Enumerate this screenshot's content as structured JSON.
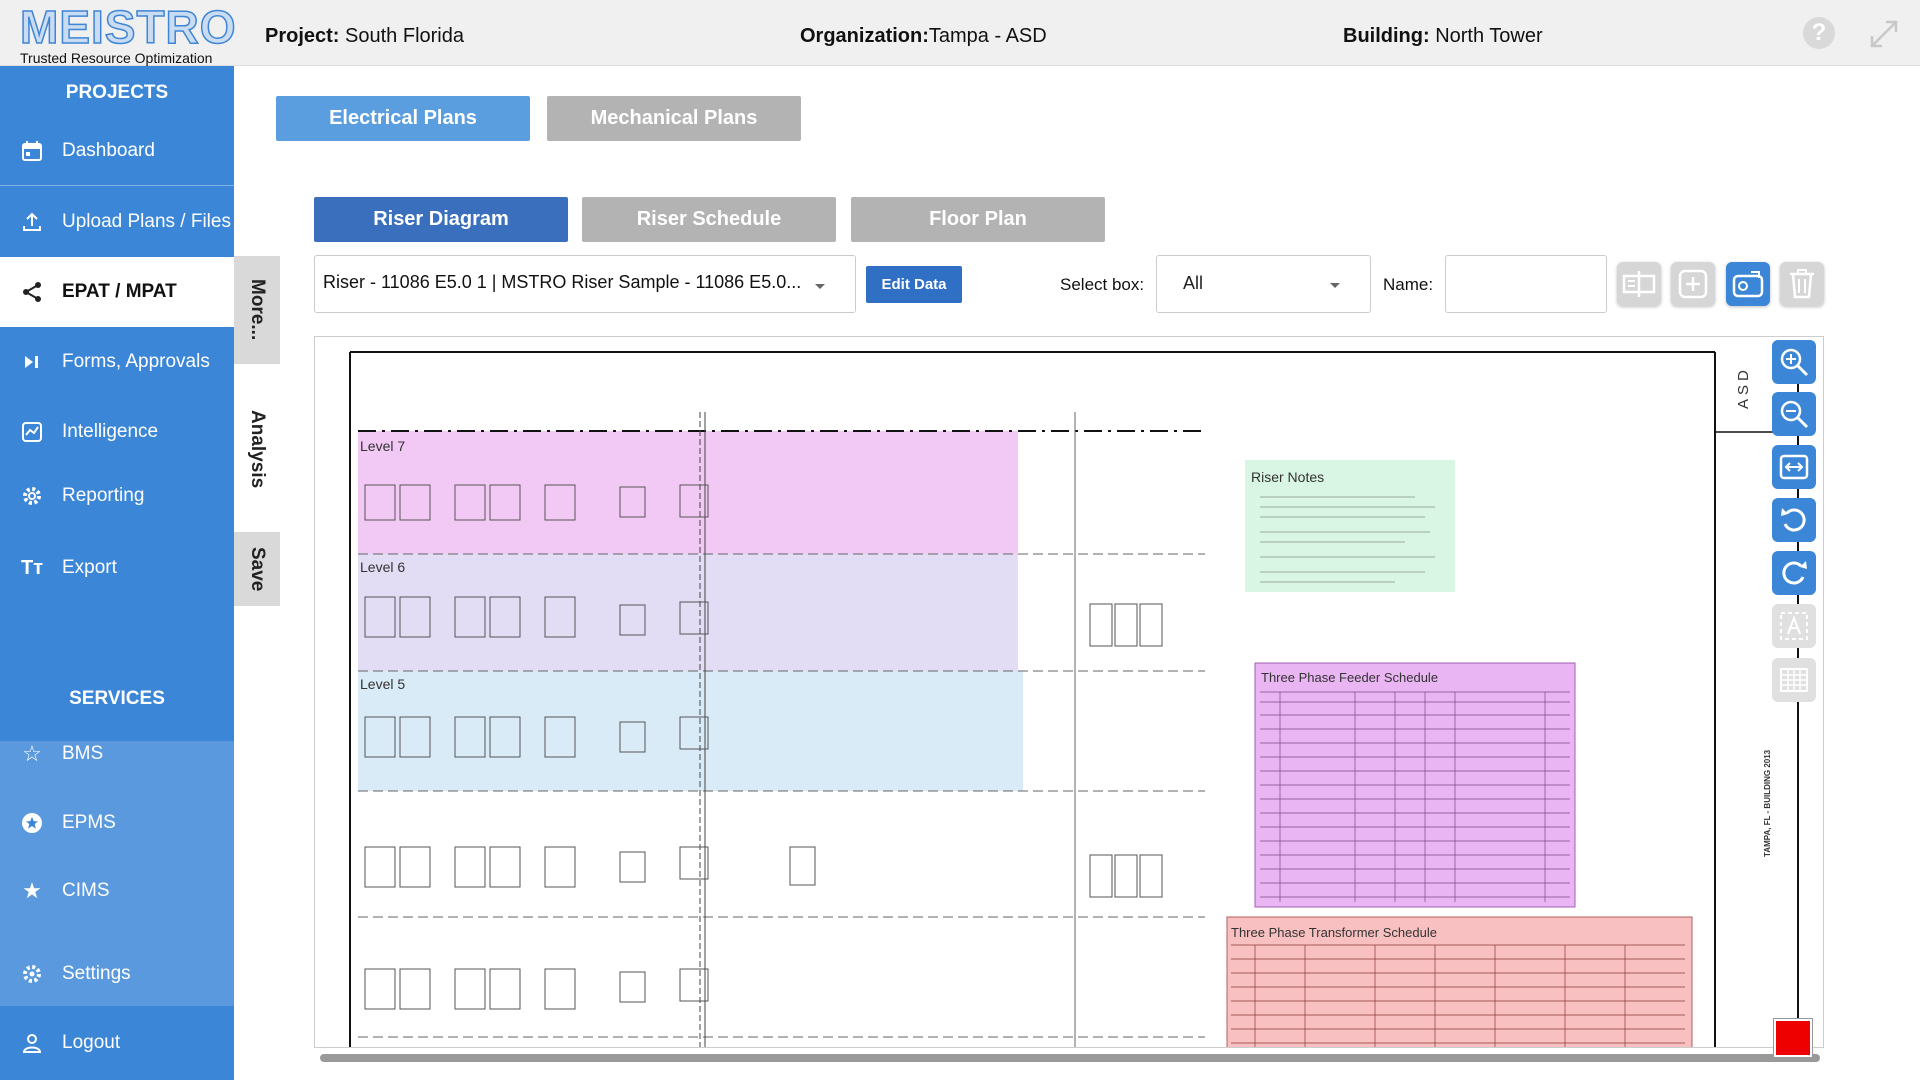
{
  "header": {
    "logo_text": "MEISTRO",
    "logo_tagline": "Trusted Resource Optimization",
    "project_label": "Project:",
    "project_value": "South Florida",
    "organization_label": "Organization:",
    "organization_value": "Tampa - ASD",
    "building_label": "Building:",
    "building_value": "North Tower",
    "help_glyph": "?"
  },
  "sidebar": {
    "projects_heading": "PROJECTS",
    "services_heading": "SERVICES",
    "items": [
      {
        "label": "Dashboard",
        "icon": "calendar-icon"
      },
      {
        "label": "Upload Plans / Files",
        "icon": "upload-icon"
      },
      {
        "label": "EPAT / MPAT",
        "icon": "share-icon"
      },
      {
        "label": "Forms, Approvals",
        "icon": "skip-icon"
      },
      {
        "label": "Intelligence",
        "icon": "chart-icon"
      },
      {
        "label": "Reporting",
        "icon": "gear-icon"
      },
      {
        "label": "Export",
        "icon": "text-icon"
      }
    ],
    "services": [
      {
        "label": "BMS",
        "icon": "star-outline-icon"
      },
      {
        "label": "EPMS",
        "icon": "star-circle-icon"
      },
      {
        "label": "CIMS",
        "icon": "star-icon"
      }
    ],
    "footer": [
      {
        "label": "Settings",
        "icon": "gear-icon"
      },
      {
        "label": "Logout",
        "icon": "user-icon"
      }
    ]
  },
  "vertical_tabs": [
    "More...",
    "Analysis",
    "Save"
  ],
  "plan_tabs": [
    "Electrical Plans",
    "Mechanical Plans"
  ],
  "view_tabs": [
    "Riser Diagram",
    "Riser Schedule",
    "Floor Plan"
  ],
  "controls": {
    "riser_select_value": "Riser - 11086 E5.0 1 | MSTRO Riser Sample - 11086 E5.0...",
    "edit_button": "Edit Data",
    "select_box_label": "Select box:",
    "select_box_value": "All",
    "name_label": "Name:",
    "name_value": ""
  },
  "drawing": {
    "levels": [
      "Level 7",
      "Level 6",
      "Level 5"
    ],
    "riser_notes_title": "Riser Notes",
    "feeder_schedule_title": "Three Phase Feeder Schedule",
    "transformer_schedule_title": "Three Phase Transformer Schedule",
    "title_block_org": "ASD",
    "title_block_text": "TAMPA, FL - BUILDING 2013"
  },
  "colors": {
    "accent": "#3b86d6",
    "level7": "#f2c9f5",
    "level6": "#e3dcf5",
    "level5": "#d8ebf6",
    "notes": "#d9f5e3",
    "feeder": "#e9b5f2",
    "transformer": "#f8c0c0"
  }
}
